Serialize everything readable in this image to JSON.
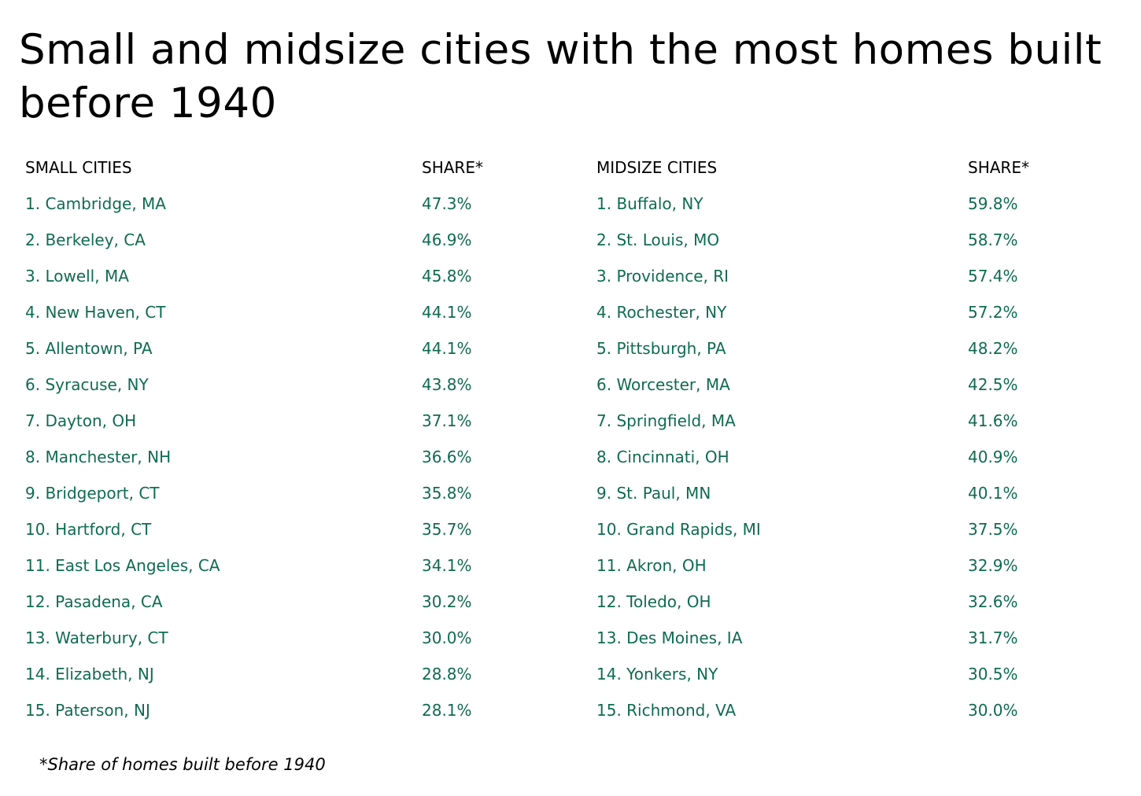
{
  "chart_data": {
    "type": "table",
    "title": "Small and midsize cities with the most homes built before 1940",
    "columns": [
      "SMALL CITIES",
      "SHARE*",
      "MIDSIZE CITIES",
      "SHARE*"
    ],
    "small_cities": [
      {
        "city": "1. Cambridge, MA",
        "share": "47.3%"
      },
      {
        "city": "2. Berkeley, CA",
        "share": "46.9%"
      },
      {
        "city": "3. Lowell, MA",
        "share": "45.8%"
      },
      {
        "city": "4. New Haven, CT",
        "share": "44.1%"
      },
      {
        "city": "5. Allentown, PA",
        "share": "44.1%"
      },
      {
        "city": "6. Syracuse, NY",
        "share": "43.8%"
      },
      {
        "city": "7. Dayton, OH",
        "share": "37.1%"
      },
      {
        "city": "8. Manchester, NH",
        "share": "36.6%"
      },
      {
        "city": "9. Bridgeport, CT",
        "share": "35.8%"
      },
      {
        "city": "10. Hartford, CT",
        "share": "35.7%"
      },
      {
        "city": "11. East Los Angeles, CA",
        "share": "34.1%"
      },
      {
        "city": "12. Pasadena, CA",
        "share": "30.2%"
      },
      {
        "city": "13. Waterbury, CT",
        "share": "30.0%"
      },
      {
        "city": "14. Elizabeth, NJ",
        "share": "28.8%"
      },
      {
        "city": "15. Paterson, NJ",
        "share": "28.1%"
      }
    ],
    "midsize_cities": [
      {
        "city": "1. Buffalo, NY",
        "share": "59.8%"
      },
      {
        "city": "2. St. Louis, MO",
        "share": "58.7%"
      },
      {
        "city": "3. Providence, RI",
        "share": "57.4%"
      },
      {
        "city": "4. Rochester, NY",
        "share": "57.2%"
      },
      {
        "city": "5. Pittsburgh, PA",
        "share": "48.2%"
      },
      {
        "city": "6. Worcester, MA",
        "share": "42.5%"
      },
      {
        "city": "7. Springfield, MA",
        "share": "41.6%"
      },
      {
        "city": "8. Cincinnati, OH",
        "share": "40.9%"
      },
      {
        "city": "9. St. Paul, MN",
        "share": "40.1%"
      },
      {
        "city": "10. Grand Rapids, MI",
        "share": "37.5%"
      },
      {
        "city": "11. Akron, OH",
        "share": "32.9%"
      },
      {
        "city": "12. Toledo, OH",
        "share": "32.6%"
      },
      {
        "city": "13. Des Moines, IA",
        "share": "31.7%"
      },
      {
        "city": "14. Yonkers, NY",
        "share": "30.5%"
      },
      {
        "city": "15. Richmond, VA",
        "share": "30.0%"
      }
    ],
    "footnote": "*Share of homes built before 1940"
  },
  "colors": {
    "value_text": "#0f6b4f",
    "header_text": "#000000"
  }
}
